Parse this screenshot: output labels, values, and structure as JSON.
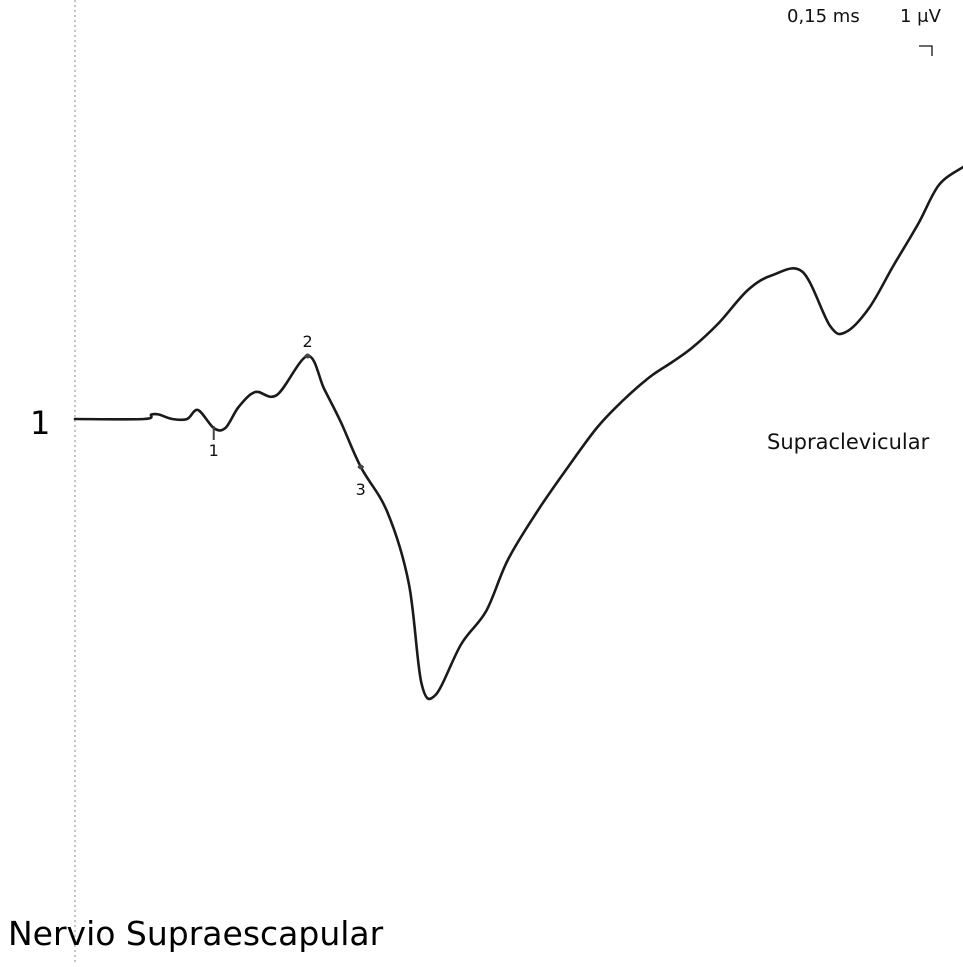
{
  "chart_data": {
    "type": "line",
    "title": "Nervio Supraescapular",
    "scale": {
      "time_label": "0,15 ms",
      "amplitude_label": "1 μV"
    },
    "trace": {
      "number": "1",
      "site": "Supraclevicular",
      "color": "#1a1a1a",
      "baseline_y": 0,
      "x_unit": "ms",
      "y_unit": "μV",
      "points": [
        [
          0.0,
          0.0
        ],
        [
          0.083,
          0.0
        ],
        [
          0.092,
          0.15
        ],
        [
          0.101,
          0.15
        ],
        [
          0.117,
          0.0
        ],
        [
          0.135,
          0.0
        ],
        [
          0.148,
          0.3
        ],
        [
          0.167,
          -0.3
        ],
        [
          0.181,
          -0.3
        ],
        [
          0.197,
          0.4
        ],
        [
          0.217,
          0.9
        ],
        [
          0.243,
          0.8
        ],
        [
          0.28,
          2.1
        ],
        [
          0.3,
          1.0
        ],
        [
          0.32,
          -0.1
        ],
        [
          0.344,
          -1.6
        ],
        [
          0.376,
          -3.1
        ],
        [
          0.402,
          -5.5
        ],
        [
          0.417,
          -8.8
        ],
        [
          0.434,
          -9.2
        ],
        [
          0.465,
          -7.5
        ],
        [
          0.495,
          -6.4
        ],
        [
          0.521,
          -4.7
        ],
        [
          0.556,
          -3.1
        ],
        [
          0.591,
          -1.7
        ],
        [
          0.628,
          -0.3
        ],
        [
          0.659,
          0.6
        ],
        [
          0.692,
          1.4
        ],
        [
          0.719,
          1.9
        ],
        [
          0.744,
          2.4
        ],
        [
          0.775,
          3.2
        ],
        [
          0.81,
          4.3
        ],
        [
          0.84,
          4.8
        ],
        [
          0.876,
          4.9
        ],
        [
          0.909,
          3.1
        ],
        [
          0.928,
          2.9
        ],
        [
          0.956,
          3.7
        ],
        [
          0.985,
          5.1
        ],
        [
          1.015,
          6.5
        ],
        [
          1.04,
          7.8
        ],
        [
          1.069,
          8.4
        ]
      ],
      "markers": [
        {
          "label": "1",
          "x": 0.167,
          "y": -0.3
        },
        {
          "label": "2",
          "x": 0.28,
          "y": 2.1
        },
        {
          "label": "3",
          "x": 0.344,
          "y": -1.6
        }
      ]
    },
    "xlim": [
      0,
      1.069
    ],
    "ylim": [
      -13,
      12
    ],
    "grid": false,
    "reference_line": "dotted vertical at stimulus onset"
  }
}
